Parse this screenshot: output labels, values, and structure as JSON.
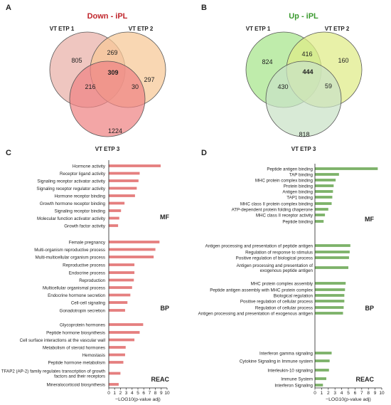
{
  "panels": [
    {
      "letter": "A",
      "title": "Down - iPL",
      "title_color": "#c0262c",
      "sets": [
        "VT ETP 1",
        "VT ETP 2",
        "VT ETP 3"
      ],
      "regions": {
        "only1": "805",
        "only2": "297",
        "only3": "1224",
        "r12": "269",
        "r13": "216",
        "r23": "30",
        "r123": "309"
      },
      "colors": [
        "#e9b0a8",
        "#f7c896",
        "#ee8484"
      ]
    },
    {
      "letter": "B",
      "title": "Up - iPL",
      "title_color": "#3b9a2f",
      "sets": [
        "VT ETP 1",
        "VT ETP 2",
        "VT ETP 3"
      ],
      "regions": {
        "only1": "824",
        "only2": "160",
        "only3": "818",
        "r12": "416",
        "r13": "430",
        "r23": "59",
        "r123": "444"
      },
      "colors": [
        "#a6e58a",
        "#dfec86",
        "#c9e2c6"
      ]
    },
    {
      "letter": "C"
    },
    {
      "letter": "D"
    }
  ],
  "chart_data": [
    {
      "type": "bar",
      "orientation": "horizontal",
      "color": "#e57f7f",
      "xlabel": "−LOG10(p-value adj)",
      "xlim": [
        0,
        10
      ],
      "xticks": [
        "0",
        "1",
        "2",
        "3",
        "4",
        "5",
        "6",
        "7",
        "8",
        "9",
        "10"
      ],
      "groups": [
        {
          "name": "MF",
          "categories": [
            {
              "label": "Hormone activity",
              "value": 8.9
            },
            {
              "label": "Receptor ligand activity",
              "value": 5.3
            },
            {
              "label": "Signaling receptor activator activity",
              "value": 5.1
            },
            {
              "label": "Signaling receptor regulator activity",
              "value": 4.8
            },
            {
              "label": "Hormone receptor binding",
              "value": 4.5
            },
            {
              "label": "Growth hormone receptor binding",
              "value": 2.7
            },
            {
              "label": "Signaling receptor binding",
              "value": 2.1
            },
            {
              "label": "Molecular function activator activity",
              "value": 1.8
            },
            {
              "label": "Growth factor activity",
              "value": 1.6
            }
          ]
        },
        {
          "name": "BP",
          "categories": [
            {
              "label": "Female pregnancy",
              "value": 8.7
            },
            {
              "label": "Multi-organism reproductive process",
              "value": 8.0
            },
            {
              "label": "Multi-multicellular organism process",
              "value": 7.7
            },
            {
              "label": "Reproductive process",
              "value": 4.4
            },
            {
              "label": "Endocrine process",
              "value": 4.4
            },
            {
              "label": "Reproduction",
              "value": 4.3
            },
            {
              "label": "Multicellular organismal process",
              "value": 4.0
            },
            {
              "label": "Endocrine hormone secretion",
              "value": 3.7
            },
            {
              "label": "Cell-cell signaling",
              "value": 3.2
            },
            {
              "label": "Gonadotropin secretion",
              "value": 2.8
            }
          ]
        },
        {
          "name": "REAC",
          "categories": [
            {
              "label": "Glycoprotein hormones",
              "value": 5.9
            },
            {
              "label": "Peptide hormone biosynthesis",
              "value": 5.3
            },
            {
              "label": "Cell surface interactions at the vascular wall",
              "value": 4.4
            },
            {
              "label": "Metabolism of steroid hormones",
              "value": 2.9
            },
            {
              "label": "Hemostasis",
              "value": 2.8
            },
            {
              "label": "Peptide hormone metabolism",
              "value": 2.5
            },
            {
              "label": "TFAP2 (AP-2) family regulates transcription of growth factors and their receptors",
              "value": 2.0
            },
            {
              "label": "Mineralocorticoid biosynthesis",
              "value": 1.7
            }
          ]
        }
      ]
    },
    {
      "type": "bar",
      "orientation": "horizontal",
      "color": "#7db26a",
      "xlabel": "−LOG10(p-value adj)",
      "xlim": [
        0,
        10
      ],
      "xticks": [
        "0",
        "1",
        "2",
        "3",
        "4",
        "5",
        "6",
        "7",
        "8",
        "9",
        "10"
      ],
      "groups": [
        {
          "name": "MF",
          "categories": [
            {
              "label": "Peptide antigen binding",
              "value": 9.4
            },
            {
              "label": "TAP binding",
              "value": 3.6
            },
            {
              "label": "MHC protein complex binding",
              "value": 3.1
            },
            {
              "label": "Protein binding",
              "value": 2.8
            },
            {
              "label": "Antigen binding",
              "value": 2.7
            },
            {
              "label": "TAP1 binding",
              "value": 2.6
            },
            {
              "label": "MHC class II protein complex binding",
              "value": 2.5
            },
            {
              "label": "ATP-dependent protein folding chaperone",
              "value": 2.0
            },
            {
              "label": "MHC class II receptor activity",
              "value": 1.5
            },
            {
              "label": "Peptide binding",
              "value": 1.3
            }
          ]
        },
        {
          "name": "BP",
          "categories": [
            {
              "label": "Antigen processing and presentation of peptide antigen",
              "value": 5.3
            },
            {
              "label": "Regulation of response to stimulus",
              "value": 5.2
            },
            {
              "label": "Positive regulation of biological process",
              "value": 5.1
            },
            {
              "label": "Antigen processing and presentation of exogenous peptide antigen",
              "value": 5.0
            },
            {
              "label": "MHC protein complex assembly",
              "value": 4.6
            },
            {
              "label": "Peptide antigen assembly with MHC protein complex",
              "value": 4.5
            },
            {
              "label": "Biological regulation",
              "value": 4.4
            },
            {
              "label": "Positive regulation of cellular process",
              "value": 4.4
            },
            {
              "label": "Regulation of cellular process",
              "value": 4.3
            },
            {
              "label": "Antigen processing and presentation of exogenous antigen",
              "value": 4.2
            }
          ]
        },
        {
          "name": "REAC",
          "categories": [
            {
              "label": "Interferon gamma signaling",
              "value": 2.5
            },
            {
              "label": "Cytokine Signaling in Immune system",
              "value": 2.2
            },
            {
              "label": "Interleukin-10 signaling",
              "value": 2.1
            },
            {
              "label": "Immune System",
              "value": 1.7
            },
            {
              "label": "Interferon Signaling",
              "value": 1.2
            }
          ]
        }
      ]
    }
  ]
}
